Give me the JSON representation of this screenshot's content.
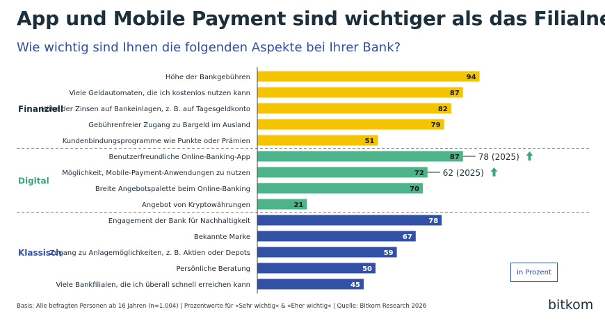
{
  "header": {
    "title": "App und Mobile Payment sind wichtiger als das Filialnetz",
    "subtitle": "Wie wichtig sind Ihnen die folgenden Aspekte bei Ihrer Bank?"
  },
  "footer": {
    "note": "Basis: Alle befragten Personen ab 16 Jahren (n=1.004) | Prozentwerte für »Sehr wichtig« & »Eher wichtig« | Quelle: Bitkom Research 2026",
    "brand": "bitkom"
  },
  "unit_label": "in Prozent",
  "colors": {
    "finanziell": "#f5c400",
    "digital": "#4db38a",
    "klassisch": "#3150a6",
    "up_arrow": "#3aa878",
    "finanziell_label": "#1b2f3d",
    "digital_label": "#3aa878",
    "klassisch_label": "#2f4fa8"
  },
  "chart_data": {
    "type": "bar",
    "orientation": "horizontal",
    "xlim": [
      0,
      100
    ],
    "groups": [
      {
        "name": "Finanziell",
        "color_key": "finanziell",
        "items": [
          {
            "label": "Höhe der Bankgebühren",
            "value": 94
          },
          {
            "label": "Viele Geldautomaten, die ich kostenlos nutzen kann",
            "value": 87
          },
          {
            "label": "Höhe der Zinsen auf Bankeinlagen, z. B. auf Tagesgeldkonto",
            "value": 82
          },
          {
            "label": "Gebührenfreier Zugang zu Bargeld im Ausland",
            "value": 79
          },
          {
            "label": "Kundenbindungsprogramme wie Punkte oder Prämien",
            "value": 51
          }
        ]
      },
      {
        "name": "Digital",
        "color_key": "digital",
        "items": [
          {
            "label": "Benutzerfreundliche Online-Banking-App",
            "value": 87,
            "comparison": {
              "value": 78,
              "label": "78 (2025)"
            }
          },
          {
            "label": "Möglichkeit, Mobile-Payment-Anwendungen zu nutzen",
            "value": 72,
            "comparison": {
              "value": 62,
              "label": "62 (2025)"
            }
          },
          {
            "label": "Breite Angebotspalette beim Online-Banking",
            "value": 70
          },
          {
            "label": "Angebot von Kryptowährungen",
            "value": 21
          }
        ]
      },
      {
        "name": "Klassisch",
        "color_key": "klassisch",
        "items": [
          {
            "label": "Engagement der Bank für Nachhaltigkeit",
            "value": 78
          },
          {
            "label": "Bekannte Marke",
            "value": 67
          },
          {
            "label": "Zugang zu Anlagemöglichkeiten, z. B. Aktien oder Depots",
            "value": 59
          },
          {
            "label": "Persönliche Beratung",
            "value": 50
          },
          {
            "label": "Viele Bankfilialen, die ich überall schnell erreichen kann",
            "value": 45
          }
        ]
      }
    ]
  }
}
